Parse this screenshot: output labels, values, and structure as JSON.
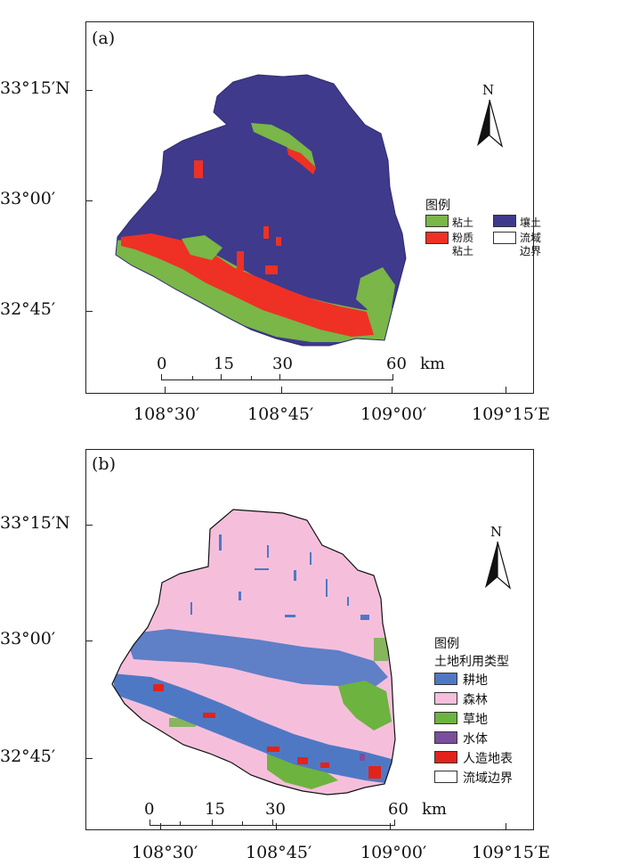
{
  "map_a": {
    "panel_label": "(a)",
    "lat_labels": [
      "33°15′N",
      "33°00′",
      "32°45′"
    ],
    "lon_labels": [
      "108°30′",
      "108°45′",
      "109°00′",
      "109°15′E"
    ],
    "legend_title": "图例",
    "legend_items": [
      {
        "label": "粘土",
        "color": "#7ab648"
      },
      {
        "label": "粉质\n粘土",
        "color": "#ee3124"
      },
      {
        "label": "壤土",
        "color": "#3f3a8c"
      },
      {
        "label": "流域\n边界",
        "color": "#ffffff"
      }
    ],
    "north": "N",
    "scale_ticks": [
      "0",
      "15",
      "30",
      "60"
    ],
    "scale_unit": "km"
  },
  "map_b": {
    "panel_label": "(b)",
    "lat_labels": [
      "33°15′N",
      "33°00′",
      "32°45′"
    ],
    "lon_labels": [
      "108°30′",
      "108°45′",
      "109°00′",
      "109°15′E"
    ],
    "legend_title": "图例",
    "legend_subtitle": "土地利用类型",
    "legend_items": [
      {
        "label": "耕地",
        "color": "#4f78c4"
      },
      {
        "label": "森林",
        "color": "#f5bfdc"
      },
      {
        "label": "草地",
        "color": "#6db33f"
      },
      {
        "label": "水体",
        "color": "#7a4e9c"
      },
      {
        "label": "人造地表",
        "color": "#e2231a"
      },
      {
        "label": "流域边界",
        "color": "#ffffff"
      }
    ],
    "north": "N",
    "scale_ticks": [
      "0",
      "15",
      "30",
      "60"
    ],
    "scale_unit": "km"
  }
}
